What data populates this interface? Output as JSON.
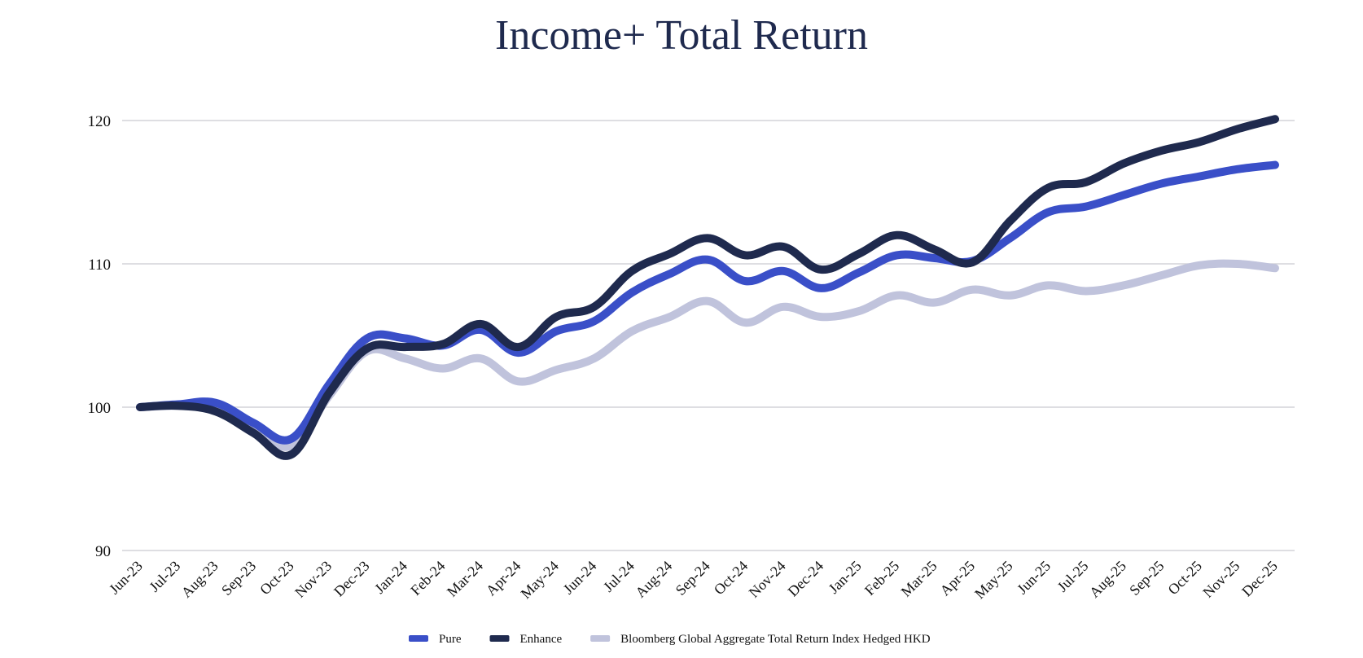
{
  "chart_data": {
    "type": "line",
    "title": "Income+ Total Return",
    "xlabel": "",
    "ylabel": "",
    "ylim": [
      90,
      120
    ],
    "yticks": [
      90,
      100,
      110,
      120
    ],
    "grid": true,
    "legend_position": "bottom",
    "categories": [
      "Jun-23",
      "Jul-23",
      "Aug-23",
      "Sep-23",
      "Oct-23",
      "Nov-23",
      "Dec-23",
      "Jan-24",
      "Feb-24",
      "Mar-24",
      "Apr-24",
      "May-24",
      "Jun-24",
      "Jul-24",
      "Aug-24",
      "Sep-24",
      "Oct-24",
      "Nov-24",
      "Dec-24",
      "Jan-25",
      "Feb-25",
      "Mar-25",
      "Apr-25",
      "May-25",
      "Jun-25",
      "Jul-25",
      "Aug-25",
      "Sep-25",
      "Oct-25",
      "Nov-25",
      "Dec-25"
    ],
    "series": [
      {
        "name": "Pure",
        "color": "#3a4fc8",
        "values": [
          100.0,
          100.2,
          100.3,
          98.9,
          97.8,
          101.6,
          104.8,
          104.8,
          104.3,
          105.4,
          103.8,
          105.3,
          106.0,
          108.0,
          109.3,
          110.3,
          108.8,
          109.5,
          108.3,
          109.4,
          110.6,
          110.4,
          110.2,
          111.8,
          113.6,
          114.0,
          114.8,
          115.6,
          116.1,
          116.6,
          116.9
        ]
      },
      {
        "name": "Enhance",
        "color": "#1f2a4e",
        "values": [
          100.0,
          100.1,
          99.7,
          98.2,
          96.7,
          101.0,
          104.1,
          104.2,
          104.4,
          105.8,
          104.2,
          106.3,
          107.0,
          109.5,
          110.7,
          111.8,
          110.6,
          111.2,
          109.6,
          110.7,
          112.0,
          111.0,
          110.1,
          113.0,
          115.3,
          115.7,
          117.0,
          117.9,
          118.5,
          119.4,
          120.1
        ]
      },
      {
        "name": "Bloomberg Global Aggregate Total Return Index Hedged HKD",
        "color": "#c0c3dc",
        "values": [
          100.0,
          100.1,
          99.9,
          98.6,
          97.3,
          100.8,
          103.9,
          103.4,
          102.7,
          103.4,
          101.8,
          102.6,
          103.4,
          105.3,
          106.3,
          107.4,
          105.9,
          107.0,
          106.3,
          106.7,
          107.8,
          107.3,
          108.2,
          107.8,
          108.5,
          108.1,
          108.5,
          109.2,
          109.9,
          110.0,
          109.7
        ]
      }
    ]
  }
}
